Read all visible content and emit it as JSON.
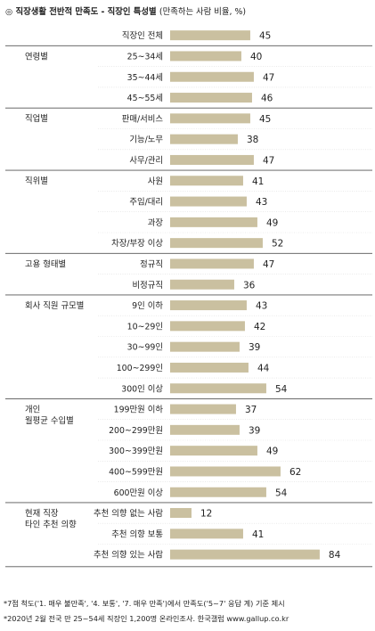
{
  "title": {
    "main": "◎ 직장생활 전반적 만족도 - 직장인 특성별",
    "sub": "(만족하는 사람 비율, %)"
  },
  "notes": [
    "*7점 척도('1. 매우 불만족', '4. 보통', '7. 매우 만족')에서 만족도('5~7' 응답 계) 기준 제시",
    "*2020년 2월 전국 만 25~54세 직장인 1,200명 온라인조사. 한국갤럽 www.gallup.co.kr"
  ],
  "colors": {
    "bar": "#cac0a0",
    "group_line": "#555555",
    "row_line": "#dddddd"
  },
  "chart_data": {
    "type": "bar",
    "orientation": "horizontal",
    "unit": "%",
    "xlim": [
      0,
      84
    ],
    "groups": [
      {
        "label": "",
        "rows": [
          {
            "label": "직장인 전체",
            "value": 45
          }
        ]
      },
      {
        "label": "연령별",
        "rows": [
          {
            "label": "25~34세",
            "value": 40
          },
          {
            "label": "35~44세",
            "value": 47
          },
          {
            "label": "45~55세",
            "value": 46
          }
        ]
      },
      {
        "label": "직업별",
        "rows": [
          {
            "label": "판매/서비스",
            "value": 45
          },
          {
            "label": "기능/노무",
            "value": 38
          },
          {
            "label": "사무/관리",
            "value": 47
          }
        ]
      },
      {
        "label": "직위별",
        "rows": [
          {
            "label": "사원",
            "value": 41
          },
          {
            "label": "주임/대리",
            "value": 43
          },
          {
            "label": "과장",
            "value": 49
          },
          {
            "label": "차장/부장 이상",
            "value": 52
          }
        ]
      },
      {
        "label": "고용 형태별",
        "rows": [
          {
            "label": "정규직",
            "value": 47
          },
          {
            "label": "비정규직",
            "value": 36
          }
        ]
      },
      {
        "label": "회사 직원 규모별",
        "rows": [
          {
            "label": "9인 이하",
            "value": 43
          },
          {
            "label": "10~29인",
            "value": 42
          },
          {
            "label": "30~99인",
            "value": 39
          },
          {
            "label": "100~299인",
            "value": 44
          },
          {
            "label": "300인 이상",
            "value": 54
          }
        ]
      },
      {
        "label": "개인\n월평균 수입별",
        "rows": [
          {
            "label": "199만원 이하",
            "value": 37
          },
          {
            "label": "200~299만원",
            "value": 39
          },
          {
            "label": "300~399만원",
            "value": 49
          },
          {
            "label": "400~599만원",
            "value": 62
          },
          {
            "label": "600만원 이상",
            "value": 54
          }
        ]
      },
      {
        "label": "현재 직장\n타인 추천 의향",
        "rows": [
          {
            "label": "추천 의향 없는 사람",
            "value": 12
          },
          {
            "label": "추천 의향 보통",
            "value": 41
          },
          {
            "label": "추천 의향 있는 사람",
            "value": 84
          }
        ]
      }
    ]
  }
}
